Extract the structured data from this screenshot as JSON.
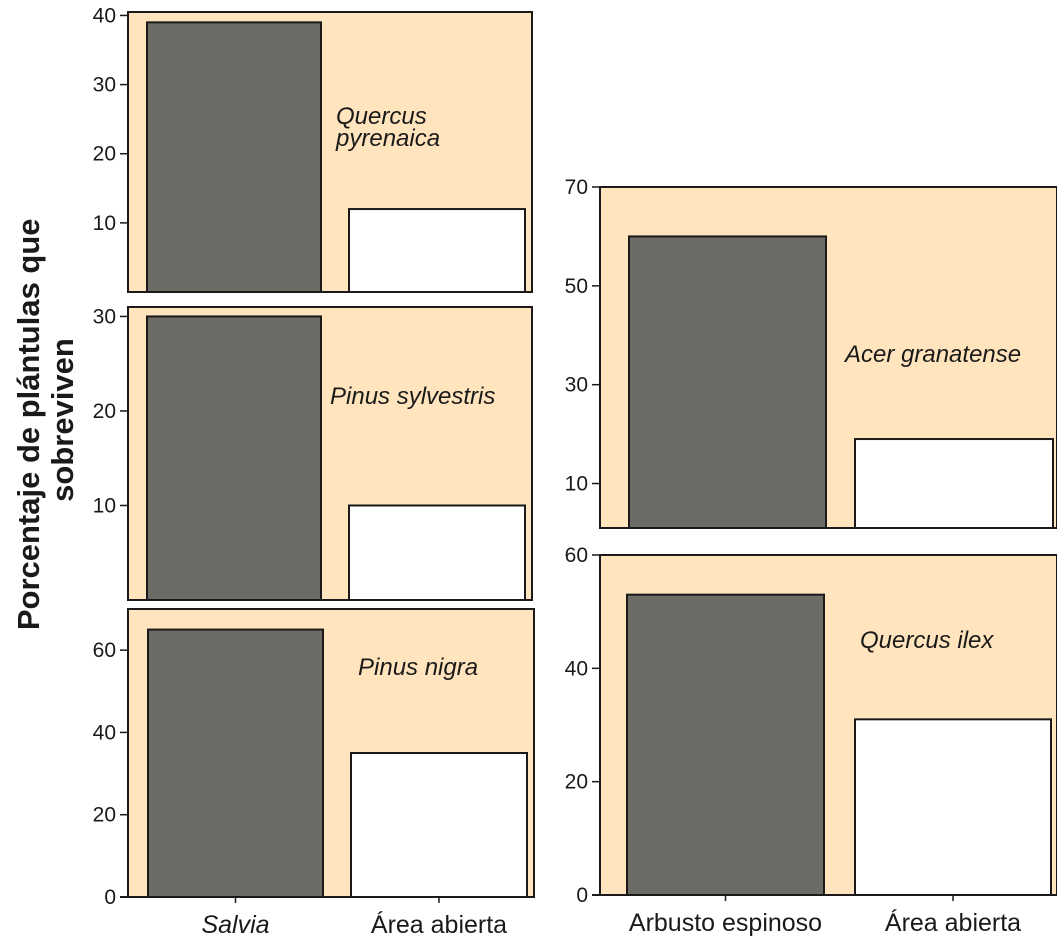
{
  "ylabel_lines": [
    "Porcentaje de plántulas que",
    "sobreviven"
  ],
  "colors": {
    "panel_background": "#ffe4bd",
    "bar_dark": "#6d6b66",
    "bar_light": "#ffffff",
    "stroke": "#1a1a1a"
  },
  "chart_data": [
    {
      "type": "bar",
      "title": "Quercus pyrenaica",
      "categories": [
        "Salvia",
        "Área abierta"
      ],
      "values": [
        39,
        12
      ],
      "ylim": [
        0,
        40.5
      ],
      "yticks": [
        10,
        20,
        30,
        40
      ],
      "xlabels_shown": false
    },
    {
      "type": "bar",
      "title": "Pinus sylvestris",
      "categories": [
        "Salvia",
        "Área abierta"
      ],
      "values": [
        30,
        10
      ],
      "ylim": [
        0,
        31
      ],
      "yticks": [
        10,
        20,
        30
      ],
      "xlabels_shown": false
    },
    {
      "type": "bar",
      "title": "Pinus nigra",
      "categories": [
        "Salvia",
        "Área abierta"
      ],
      "values": [
        65,
        35
      ],
      "ylim": [
        0,
        70
      ],
      "yticks": [
        0,
        20,
        40,
        60
      ],
      "xlabels_shown": true
    },
    {
      "type": "bar",
      "title": "Acer granatense",
      "categories": [
        "Arbusto espinoso",
        "Área abierta"
      ],
      "values": [
        60,
        19
      ],
      "ylim": [
        1,
        70
      ],
      "yticks": [
        10,
        30,
        50,
        70
      ],
      "xlabels_shown": false
    },
    {
      "type": "bar",
      "title": "Quercus ilex",
      "categories": [
        "Arbusto espinoso",
        "Área abierta"
      ],
      "values": [
        53,
        31
      ],
      "ylim": [
        0,
        60
      ],
      "yticks": [
        0,
        20,
        40,
        60
      ],
      "xlabels_shown": true
    }
  ]
}
